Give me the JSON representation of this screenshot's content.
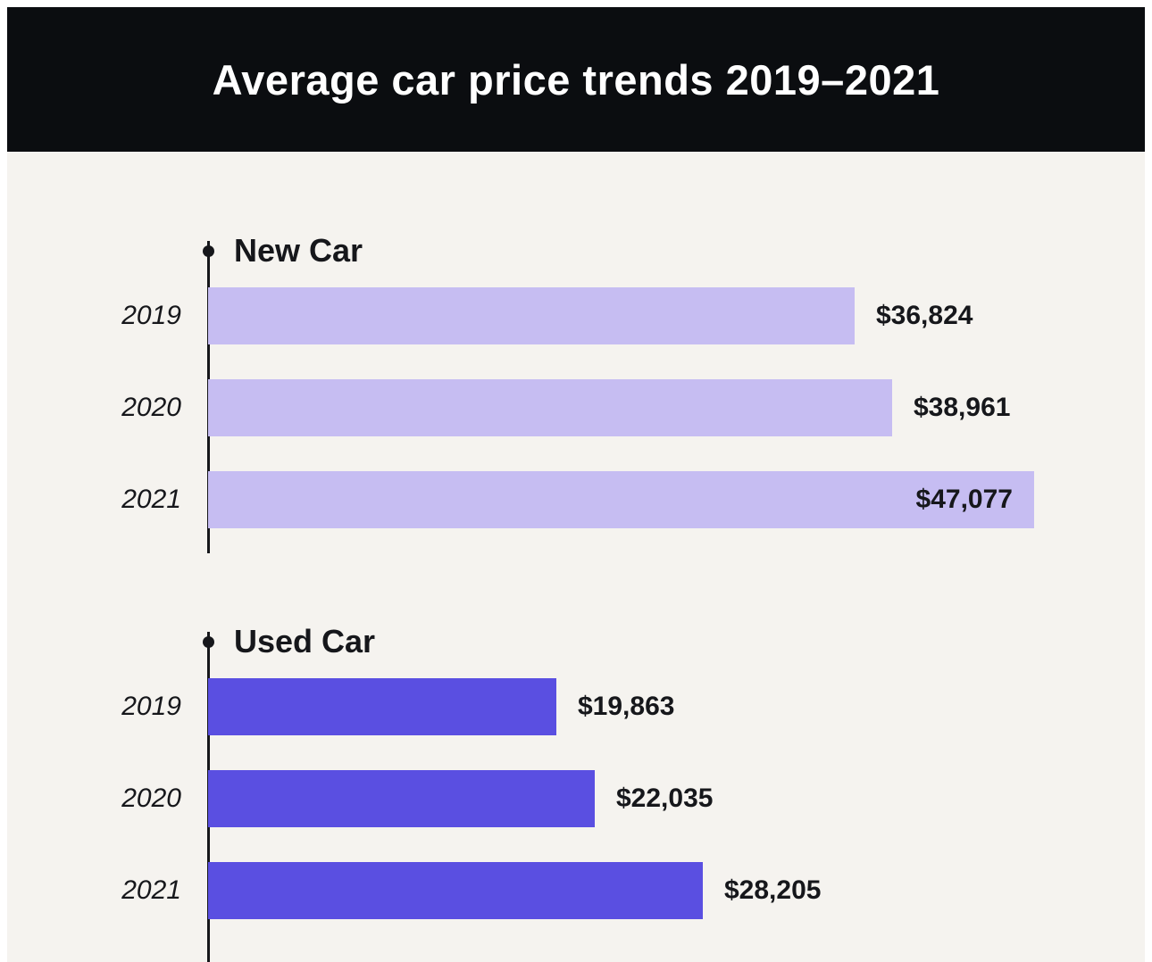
{
  "header": {
    "title": "Average car price trends 2019–2021"
  },
  "colors": {
    "header_bg": "#0b0d10",
    "chart_bg": "#f5f3ef",
    "new_car_bar": "#c6bdf2",
    "used_car_bar": "#5a4fe1",
    "text": "#16171b"
  },
  "chart_data": {
    "type": "bar",
    "orientation": "horizontal",
    "title": "Average car price trends 2019–2021",
    "categories": [
      "2019",
      "2020",
      "2021"
    ],
    "series": [
      {
        "name": "New Car",
        "values": [
          36824,
          38961,
          47077
        ],
        "labels": [
          "$36,824",
          "$38,961",
          "$47,077"
        ],
        "color": "#c6bdf2"
      },
      {
        "name": "Used Car",
        "values": [
          19863,
          22035,
          28205
        ],
        "labels": [
          "$19,863",
          "$22,035",
          "$28,205"
        ],
        "color": "#5a4fe1"
      }
    ],
    "xlabel": "",
    "ylabel": "",
    "xlim": [
      0,
      47077
    ],
    "value_prefix": "$",
    "grid": false,
    "legend_position": "none",
    "value_labels": "outside (inside bar when bar reaches axis maximum)"
  }
}
